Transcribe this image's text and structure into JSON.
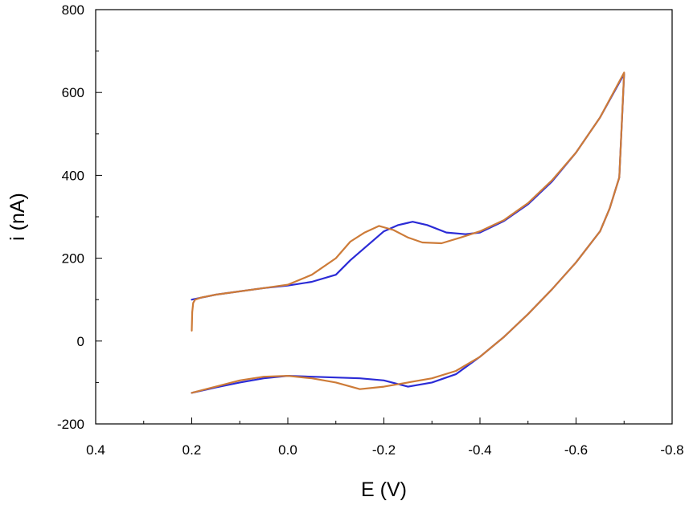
{
  "chart_data": {
    "type": "line",
    "title": "",
    "xlabel": "E (V)",
    "ylabel": "i (nA)",
    "xlim": [
      0.4,
      -0.8
    ],
    "ylim": [
      -200,
      800
    ],
    "x_ticks": [
      0.4,
      0.2,
      0.0,
      -0.2,
      -0.4,
      -0.6,
      -0.8
    ],
    "x_tick_labels": [
      "0.4",
      "0.2",
      "0.0",
      "-0.2",
      "-0.4",
      "-0.6",
      "-0.8"
    ],
    "y_ticks": [
      -200,
      0,
      200,
      400,
      600,
      800
    ],
    "y_tick_labels": [
      "-200",
      "0",
      "200",
      "400",
      "600",
      "800"
    ],
    "grid": false,
    "legend": "none",
    "series": [
      {
        "color": "#2b2bd6",
        "x": [
          0.2,
          0.15,
          0.1,
          0.05,
          0.0,
          -0.05,
          -0.1,
          -0.13,
          -0.16,
          -0.2,
          -0.23,
          -0.26,
          -0.29,
          -0.33,
          -0.37,
          -0.4,
          -0.45,
          -0.5,
          -0.55,
          -0.6,
          -0.65,
          -0.7,
          -0.69,
          -0.67,
          -0.65,
          -0.6,
          -0.55,
          -0.5,
          -0.45,
          -0.4,
          -0.35,
          -0.3,
          -0.25,
          -0.2,
          -0.15,
          -0.1,
          -0.05,
          0.0,
          0.05,
          0.1,
          0.15,
          0.2
        ],
        "y": [
          100,
          112,
          120,
          128,
          134,
          143,
          160,
          195,
          225,
          265,
          280,
          288,
          280,
          262,
          258,
          262,
          290,
          330,
          385,
          455,
          540,
          645,
          395,
          320,
          265,
          190,
          125,
          65,
          10,
          -38,
          -80,
          -100,
          -110,
          -95,
          -90,
          -88,
          -86,
          -84,
          -90,
          -100,
          -112,
          -125
        ]
      },
      {
        "color": "#cd7b38",
        "x": [
          0.2,
          0.199,
          0.197,
          0.193,
          0.18,
          0.15,
          0.1,
          0.05,
          0.0,
          -0.05,
          -0.1,
          -0.13,
          -0.16,
          -0.19,
          -0.22,
          -0.25,
          -0.28,
          -0.32,
          -0.36,
          -0.4,
          -0.45,
          -0.5,
          -0.55,
          -0.6,
          -0.65,
          -0.7,
          -0.69,
          -0.67,
          -0.65,
          -0.6,
          -0.55,
          -0.5,
          -0.45,
          -0.4,
          -0.35,
          -0.3,
          -0.25,
          -0.2,
          -0.15,
          -0.1,
          -0.05,
          0.0,
          0.05,
          0.1,
          0.15,
          0.2
        ],
        "y": [
          25,
          70,
          92,
          100,
          105,
          112,
          120,
          128,
          136,
          160,
          200,
          240,
          262,
          278,
          268,
          250,
          238,
          236,
          250,
          265,
          292,
          333,
          388,
          455,
          540,
          648,
          395,
          320,
          265,
          190,
          125,
          65,
          10,
          -38,
          -72,
          -90,
          -100,
          -110,
          -116,
          -100,
          -90,
          -84,
          -86,
          -95,
          -110,
          -125
        ]
      }
    ]
  }
}
